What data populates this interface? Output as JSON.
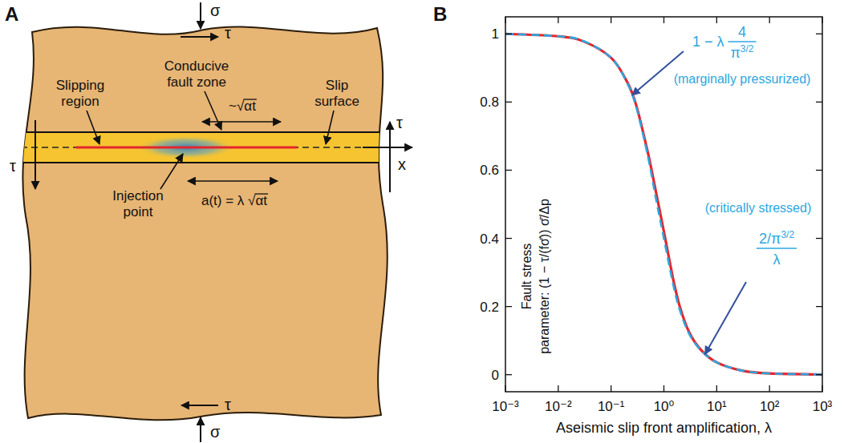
{
  "diagram": {
    "panel_label": "A",
    "stress_labels": {
      "sigma_top": "σ",
      "tau_top": "τ",
      "tau_left": "τ",
      "tau_right": "τ",
      "axis_x": "x",
      "sigma_bottom": "σ",
      "tau_bottom": "τ"
    },
    "labels": {
      "conducive_fault_zone": "Conducive fault zone",
      "slipping_region": "Slipping region",
      "slip_surface": "Slip surface",
      "diffusion_length": "~√αt",
      "injection_point": "Injection point",
      "slip_front": "a(t) = λ √αt"
    }
  },
  "chart_data": {
    "type": "line",
    "panel_label": "B",
    "xlabel": "Aseismic slip front amplification, λ",
    "ylabel": [
      "Fault stress",
      "parameter: (1 − τ/(fσ̄)) σ̄/Δp"
    ],
    "log": "x",
    "grid": false,
    "xlim": [
      0.001,
      1000
    ],
    "ylim": [
      -0.05,
      1.05
    ],
    "xticks": [
      {
        "value": 0.001,
        "label": "10⁻³"
      },
      {
        "value": 0.01,
        "label": "10⁻²"
      },
      {
        "value": 0.1,
        "label": "10⁻¹"
      },
      {
        "value": 1,
        "label": "10⁰"
      },
      {
        "value": 10,
        "label": "10¹"
      },
      {
        "value": 100,
        "label": "10²"
      },
      {
        "value": 1000,
        "label": "10³"
      }
    ],
    "yticks": [
      0,
      0.2,
      0.4,
      0.6,
      0.8,
      1
    ],
    "x": [
      0.001,
      0.01,
      0.03,
      0.1,
      0.2,
      0.3,
      0.5,
      0.7,
      1,
      1.5,
      2,
      3,
      5,
      10,
      30,
      100,
      1000
    ],
    "series": [
      {
        "color": "#e3262d",
        "line_style": "solid",
        "values": [
          1,
          0.993,
          0.978,
          0.93,
          0.86,
          0.79,
          0.65,
          0.54,
          0.42,
          0.28,
          0.2,
          0.125,
          0.073,
          0.036,
          0.012,
          0.0036,
          0.0004
        ]
      },
      {
        "color": "#2ca7e0",
        "line_style": "dashed",
        "values": [
          1,
          0.993,
          0.979,
          0.93,
          0.857,
          0.785,
          0.64,
          0.52,
          0.4,
          0.265,
          0.19,
          0.12,
          0.072,
          0.036,
          0.012,
          0.0036,
          0.0004
        ]
      }
    ],
    "annotations": [
      {
        "label": "(marginally pressurized)",
        "formula": {
          "prefix": "1 − λ",
          "numerator": "4",
          "denominator": "π",
          "denominator_exponent": "3/2"
        },
        "x": 0.25,
        "y": 0.82
      },
      {
        "label": "(critically stressed)",
        "formula": {
          "numerator": "2/π",
          "numerator_exponent": "3/2",
          "denominator": "λ"
        },
        "x": 6,
        "y": 0.06
      }
    ]
  }
}
